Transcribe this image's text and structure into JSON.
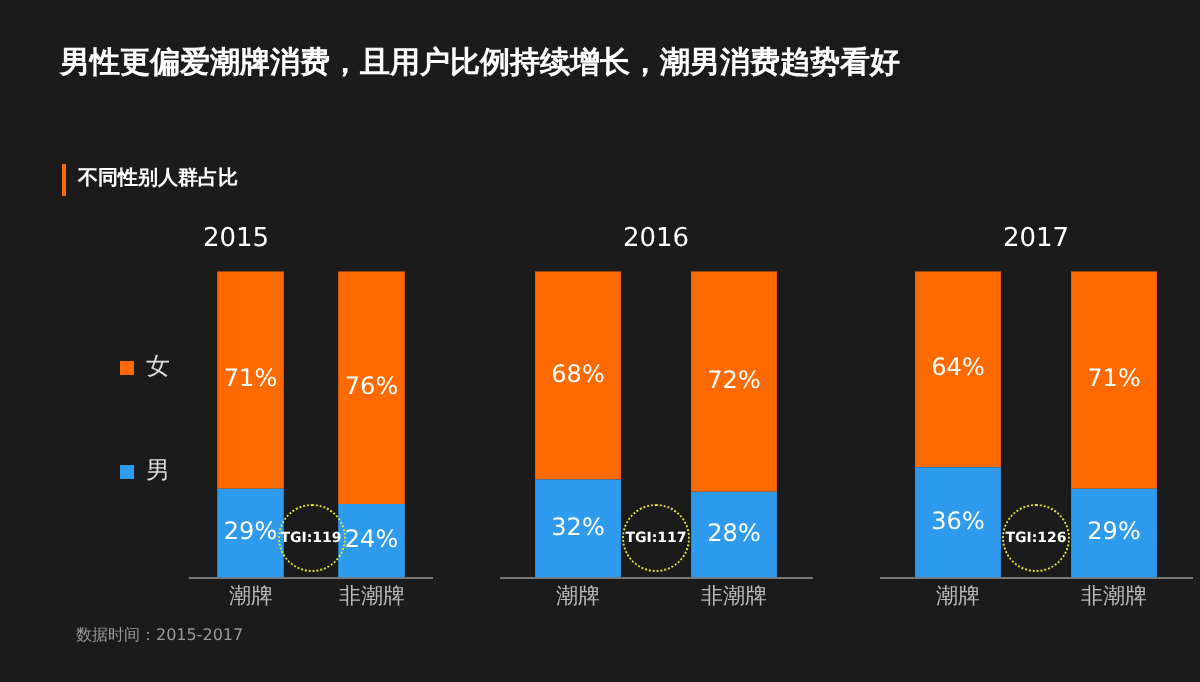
{
  "chart_data": [
    {
      "type": "other",
      "title": "男性更偏爱潮牌消费，且用户比例持续增长，潮男消费趋势看好",
      "subtitle": "不同性别人群占比",
      "annotations": [
        "数据时间：2015-2017"
      ]
    },
    {
      "type": "bar",
      "title": "2015",
      "categories": [
        "潮牌",
        "非潮牌"
      ],
      "stacked": true,
      "legend": "left",
      "annotations": [
        "TGI:119"
      ],
      "series": [
        {
          "name": "男",
          "color": "#2e9bef",
          "values": [
            29,
            24
          ],
          "value_labels": [
            "29%",
            "24%"
          ]
        },
        {
          "name": "女",
          "color": "#ff6a00",
          "values": [
            71,
            76
          ],
          "value_labels": [
            "71%",
            "76%"
          ]
        }
      ]
    },
    {
      "type": "bar",
      "title": "2016",
      "categories": [
        "潮牌",
        "非潮牌"
      ],
      "stacked": true,
      "annotations": [
        "TGI:117"
      ],
      "series": [
        {
          "color": "#2e9bef",
          "values": [
            32,
            28
          ],
          "value_labels": [
            "32%",
            "28%"
          ]
        },
        {
          "color": "#ff6a00",
          "values": [
            68,
            72
          ],
          "value_labels": [
            "68%",
            "72%"
          ]
        }
      ]
    },
    {
      "type": "bar",
      "title": "2017",
      "categories": [
        "潮牌",
        "非潮牌"
      ],
      "stacked": true,
      "annotations": [
        "TGI:126"
      ],
      "series": [
        {
          "color": "#2e9bef",
          "values": [
            36,
            29
          ],
          "value_labels": [
            "36%",
            "29%"
          ]
        },
        {
          "color": "#ff6a00",
          "values": [
            64,
            71
          ],
          "value_labels": [
            "64%",
            "71%"
          ]
        }
      ]
    }
  ]
}
